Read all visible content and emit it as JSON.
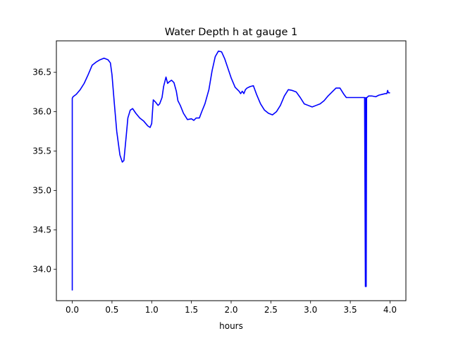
{
  "chart_data": {
    "type": "line",
    "title": "Water Depth h at gauge 1",
    "xlabel": "hours",
    "ylabel": "",
    "xlim": [
      -0.2,
      4.2
    ],
    "ylim": [
      33.6,
      36.9
    ],
    "xticks": [
      0.0,
      0.5,
      1.0,
      1.5,
      2.0,
      2.5,
      3.0,
      3.5,
      4.0
    ],
    "xtick_labels": [
      "0.0",
      "0.5",
      "1.0",
      "1.5",
      "2.0",
      "2.5",
      "3.0",
      "3.5",
      "4.0"
    ],
    "yticks": [
      34.0,
      34.5,
      35.0,
      35.5,
      36.0,
      36.5
    ],
    "ytick_labels": [
      "34.0",
      "34.5",
      "35.0",
      "35.5",
      "36.0",
      "36.5"
    ],
    "grid": false,
    "series": [
      {
        "color": "#0000ff",
        "x": [
          0.0,
          0.0,
          0.01,
          0.05,
          0.1,
          0.15,
          0.2,
          0.25,
          0.3,
          0.35,
          0.4,
          0.45,
          0.48,
          0.5,
          0.53,
          0.56,
          0.6,
          0.63,
          0.65,
          0.68,
          0.7,
          0.73,
          0.76,
          0.8,
          0.85,
          0.9,
          0.95,
          0.98,
          1.0,
          1.02,
          1.05,
          1.08,
          1.1,
          1.13,
          1.15,
          1.18,
          1.2,
          1.22,
          1.25,
          1.28,
          1.31,
          1.33,
          1.36,
          1.4,
          1.45,
          1.5,
          1.53,
          1.56,
          1.6,
          1.63,
          1.67,
          1.72,
          1.76,
          1.8,
          1.84,
          1.88,
          1.92,
          1.96,
          2.0,
          2.05,
          2.1,
          2.12,
          2.14,
          2.16,
          2.18,
          2.2,
          2.24,
          2.28,
          2.32,
          2.37,
          2.42,
          2.47,
          2.52,
          2.57,
          2.62,
          2.67,
          2.72,
          2.77,
          2.82,
          2.87,
          2.92,
          2.97,
          3.02,
          3.07,
          3.12,
          3.17,
          3.22,
          3.27,
          3.32,
          3.37,
          3.42,
          3.45,
          3.5,
          3.55,
          3.6,
          3.65,
          3.68,
          3.69,
          3.695,
          3.7,
          3.705,
          3.71,
          3.73,
          3.77,
          3.82,
          3.86,
          3.9,
          3.94,
          3.96,
          3.97,
          3.98,
          4.0
        ],
        "values": [
          33.73,
          36.17,
          36.19,
          36.22,
          36.28,
          36.36,
          36.47,
          36.59,
          36.63,
          36.66,
          36.68,
          36.66,
          36.62,
          36.47,
          36.1,
          35.75,
          35.45,
          35.36,
          35.38,
          35.7,
          35.92,
          36.02,
          36.04,
          35.98,
          35.92,
          35.88,
          35.82,
          35.8,
          35.85,
          36.15,
          36.12,
          36.08,
          36.1,
          36.18,
          36.32,
          36.44,
          36.36,
          36.38,
          36.4,
          36.37,
          36.26,
          36.14,
          36.08,
          35.98,
          35.9,
          35.91,
          35.89,
          35.92,
          35.92,
          36.0,
          36.1,
          36.28,
          36.52,
          36.7,
          36.77,
          36.76,
          36.67,
          36.55,
          36.43,
          36.31,
          36.26,
          36.23,
          36.26,
          36.23,
          36.28,
          36.3,
          36.32,
          36.33,
          36.22,
          36.1,
          36.02,
          35.98,
          35.96,
          36.0,
          36.08,
          36.2,
          36.28,
          36.27,
          36.25,
          36.18,
          36.1,
          36.08,
          36.06,
          36.08,
          36.1,
          36.14,
          36.2,
          36.25,
          36.3,
          36.3,
          36.22,
          36.18,
          36.18,
          36.18,
          36.18,
          36.18,
          36.18,
          33.78,
          36.18,
          33.78,
          36.18,
          36.18,
          36.2,
          36.2,
          36.19,
          36.21,
          36.22,
          36.23,
          36.23,
          36.27,
          36.24,
          36.24
        ]
      }
    ]
  }
}
